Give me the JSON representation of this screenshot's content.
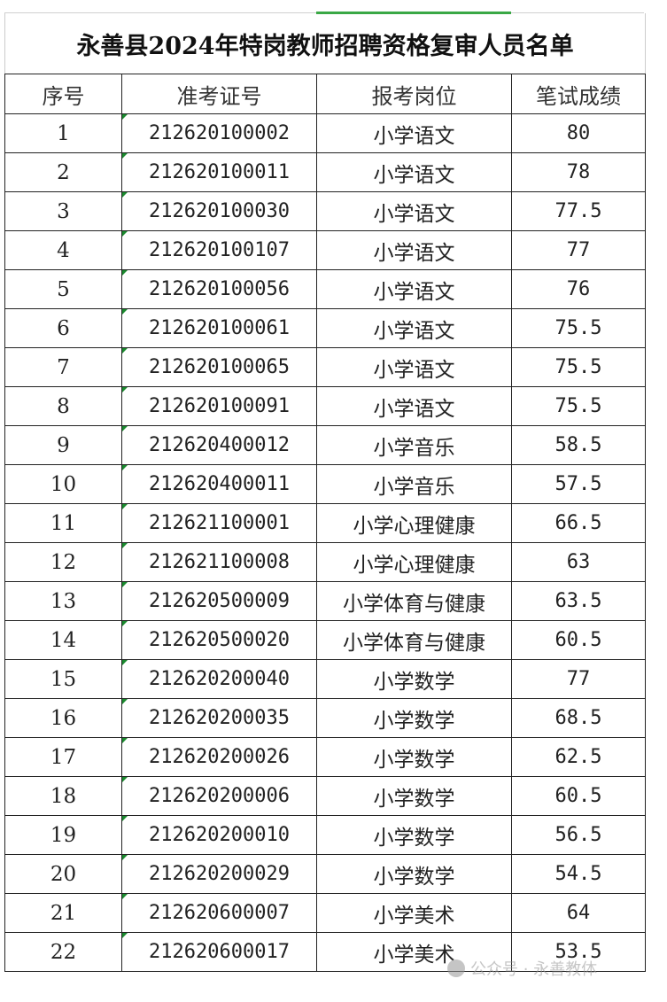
{
  "title": "永善县2024年特岗教师招聘资格复审人员名单",
  "headers": [
    "序号",
    "准考证号",
    "报考岗位",
    "笔试成绩"
  ],
  "rows": [
    [
      "1",
      "212620100002",
      "小学语文",
      "80"
    ],
    [
      "2",
      "212620100011",
      "小学语文",
      "78"
    ],
    [
      "3",
      "212620100030",
      "小学语文",
      "77.5"
    ],
    [
      "4",
      "212620100107",
      "小学语文",
      "77"
    ],
    [
      "5",
      "212620100056",
      "小学语文",
      "76"
    ],
    [
      "6",
      "212620100061",
      "小学语文",
      "75.5"
    ],
    [
      "7",
      "212620100065",
      "小学语文",
      "75.5"
    ],
    [
      "8",
      "212620100091",
      "小学语文",
      "75.5"
    ],
    [
      "9",
      "212620400012",
      "小学音乐",
      "58.5"
    ],
    [
      "10",
      "212620400011",
      "小学音乐",
      "57.5"
    ],
    [
      "11",
      "212621100001",
      "小学心理健康",
      "66.5"
    ],
    [
      "12",
      "212621100008",
      "小学心理健康",
      "63"
    ],
    [
      "13",
      "212620500009",
      "小学体育与健康",
      "63.5"
    ],
    [
      "14",
      "212620500020",
      "小学体育与健康",
      "60.5"
    ],
    [
      "15",
      "212620200040",
      "小学数学",
      "77"
    ],
    [
      "16",
      "212620200035",
      "小学数学",
      "68.5"
    ],
    [
      "17",
      "212620200026",
      "小学数学",
      "62.5"
    ],
    [
      "18",
      "212620200006",
      "小学数学",
      "60.5"
    ],
    [
      "19",
      "212620200010",
      "小学数学",
      "56.5"
    ],
    [
      "20",
      "212620200029",
      "小学数学",
      "54.5"
    ],
    [
      "21",
      "212620600007",
      "小学美术",
      "64"
    ],
    [
      "22",
      "212620600017",
      "小学美术",
      "53.5"
    ]
  ],
  "watermark": {
    "text": "公众号 · 永善教体",
    "icon": "wechat-official-account-icon"
  },
  "colors": {
    "cell_marker": "#1a8a2e",
    "selection_accent": "#3aa845"
  }
}
